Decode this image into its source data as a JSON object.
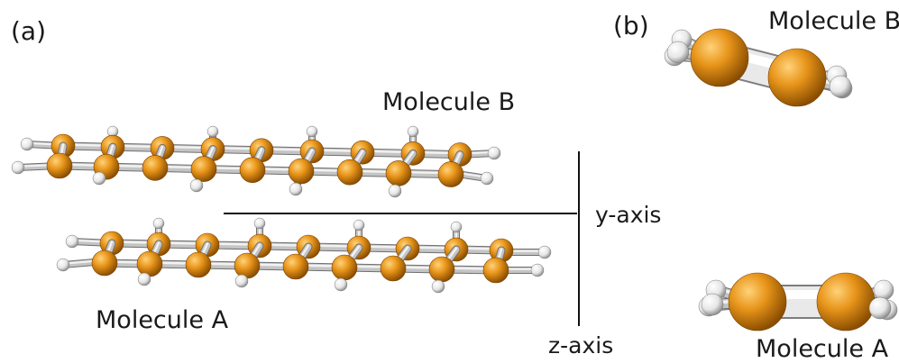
{
  "panel_a": {
    "label": "(a)",
    "molecule_b_label": "Molecule B",
    "molecule_a_label": "Molecule A",
    "y_axis_label": "y-axis",
    "z_axis_label": "z-axis"
  },
  "panel_b": {
    "label": "(b)",
    "molecule_b_label": "Molecule B",
    "molecule_a_label": "Molecule A"
  },
  "colors": {
    "carbon": "#e08a12",
    "hydrogen": "#f2f2f2",
    "bond": "#b9b9b9",
    "axis_line": "#111111"
  }
}
